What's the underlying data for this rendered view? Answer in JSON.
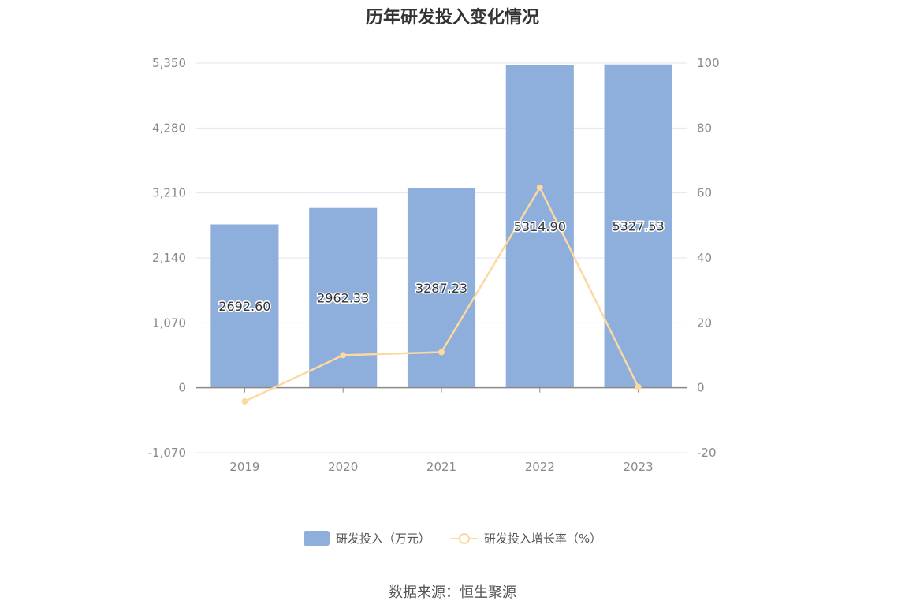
{
  "chart_data": {
    "type": "bar",
    "title": "历年研发投入变化情况",
    "categories": [
      "2019",
      "2020",
      "2021",
      "2022",
      "2023"
    ],
    "series": [
      {
        "name": "研发投入（万元）",
        "type": "bar",
        "axis": "left",
        "color": "#8eaedb",
        "values": [
          2692.6,
          2962.33,
          3287.23,
          5314.9,
          5327.53
        ],
        "labels": [
          "2692.60",
          "2962.33",
          "3287.23",
          "5314.90",
          "5327.53"
        ]
      },
      {
        "name": "研发投入增长率（%）",
        "type": "line",
        "axis": "right",
        "color": "#fcd9a0",
        "values": [
          -4.2,
          10.02,
          10.97,
          61.68,
          0.24
        ]
      }
    ],
    "y_left": {
      "min": -1070,
      "max": 5350,
      "ticks": [
        "-1,070",
        "0",
        "1,070",
        "2,140",
        "3,210",
        "4,280",
        "5,350"
      ],
      "tick_values": [
        -1070,
        0,
        1070,
        2140,
        3210,
        4280,
        5350
      ]
    },
    "y_right": {
      "min": -20,
      "max": 100,
      "ticks": [
        "-20",
        "0",
        "20",
        "40",
        "60",
        "80",
        "100"
      ],
      "tick_values": [
        -20,
        0,
        20,
        40,
        60,
        80,
        100
      ]
    },
    "grid": true,
    "legend_position": "bottom"
  },
  "source": "数据来源：恒生聚源"
}
